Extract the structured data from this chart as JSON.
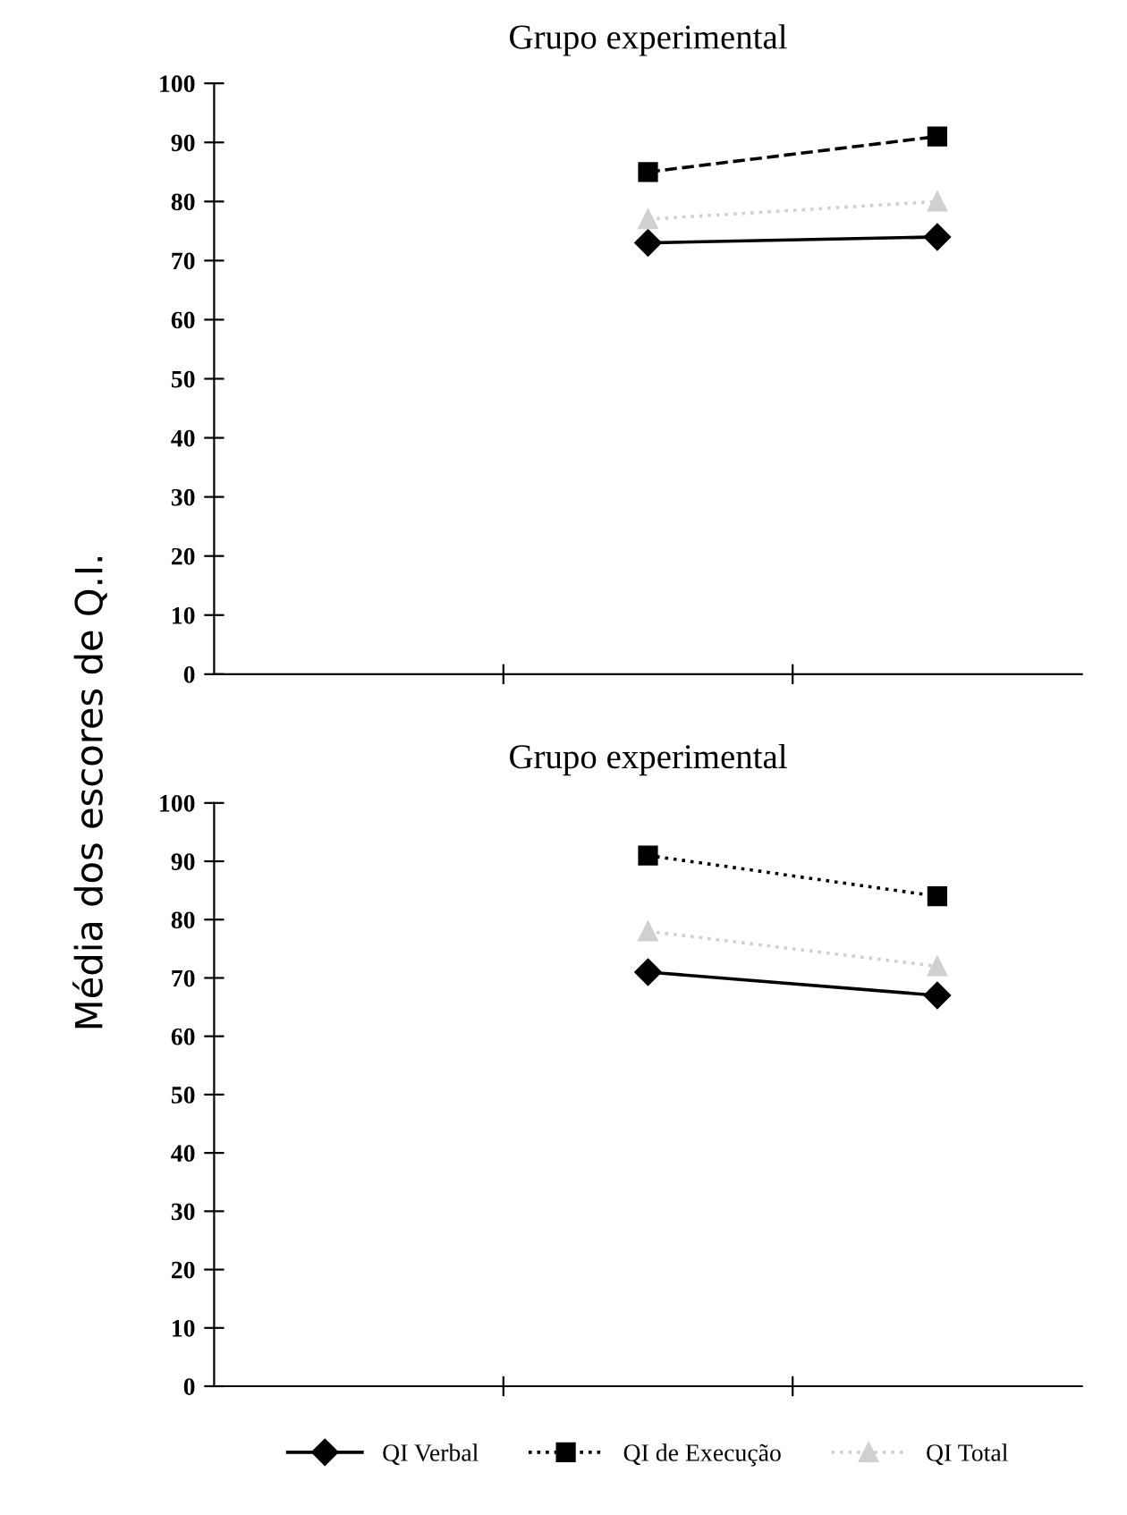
{
  "chart_data": [
    {
      "type": "line",
      "title": "Grupo experimental",
      "ylabel": "Média dos escores de Q.I.",
      "categories": [
        null,
        null,
        null
      ],
      "ylim": [
        0,
        100
      ],
      "yticks": [
        0,
        10,
        20,
        30,
        40,
        50,
        60,
        70,
        80,
        90,
        100
      ],
      "grid": false,
      "legend": false,
      "tick_labels": "y",
      "series": [
        {
          "color": "#000000",
          "marker": "diamond",
          "line_style": "solid",
          "values": [
            null,
            73,
            74
          ]
        },
        {
          "color": "#000000",
          "marker": "square",
          "line_style": "dashed",
          "values": [
            null,
            85,
            91
          ]
        },
        {
          "color": "#d0d0d0",
          "marker": "triangle",
          "line_style": "dotted",
          "values": [
            null,
            77,
            80
          ]
        }
      ]
    },
    {
      "type": "line",
      "title": "Grupo experimental",
      "categories": [
        null,
        null,
        null
      ],
      "ylim": [
        0,
        100
      ],
      "yticks": [
        0,
        10,
        20,
        30,
        40,
        50,
        60,
        70,
        80,
        90,
        100
      ],
      "grid": false,
      "legend": "bottom",
      "tick_labels": "y",
      "series": [
        {
          "name": "QI Verbal",
          "color": "#000000",
          "marker": "diamond",
          "line_style": "solid",
          "values": [
            null,
            71,
            67
          ]
        },
        {
          "name": "QI de Execução",
          "color": "#000000",
          "marker": "square",
          "line_style": "dotted",
          "values": [
            null,
            91,
            84
          ]
        },
        {
          "name": "QI Total",
          "color": "#d0d0d0",
          "marker": "triangle",
          "line_style": "dotted",
          "values": [
            null,
            78,
            72
          ]
        }
      ]
    }
  ]
}
